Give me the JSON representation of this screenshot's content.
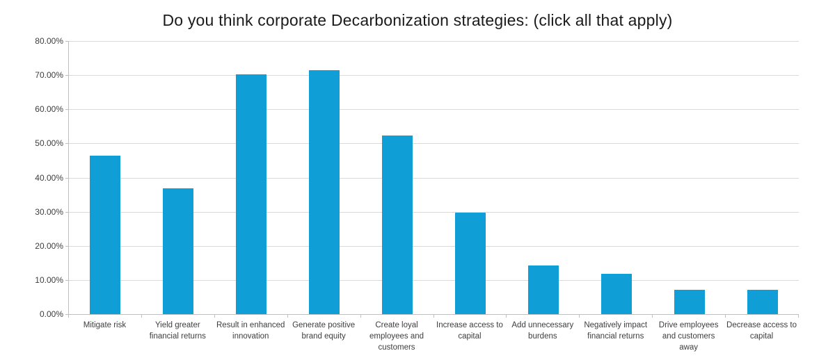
{
  "chart_data": {
    "type": "bar",
    "title": "Do you think corporate Decarbonization strategies: (click all that apply)",
    "categories": [
      "Mitigate risk",
      "Yield greater financial returns",
      "Result in enhanced innovation",
      "Generate positive brand equity",
      "Create loyal employees and customers",
      "Increase access to capital",
      "Add unnecessary burdens",
      "Negatively impact financial returns",
      "Drive employees and customers away",
      "Decrease access to capital"
    ],
    "values": [
      46.43,
      36.9,
      70.24,
      71.43,
      52.38,
      29.76,
      14.29,
      11.9,
      7.14,
      7.14
    ],
    "value_unit": "%",
    "xlabel": "",
    "ylabel": "",
    "ylim": [
      0,
      80
    ],
    "ytick_step": 10,
    "ytick_labels": [
      "0.00%",
      "10.00%",
      "20.00%",
      "30.00%",
      "40.00%",
      "50.00%",
      "60.00%",
      "70.00%",
      "80.00%"
    ],
    "grid": "horizontal",
    "legend": "none",
    "bar_color": "#0f9ed5",
    "gridline_color": "#d9d9d9",
    "axis_color": "#bfbfbf",
    "label_color": "#3d3d3d",
    "title_color": "#1a1a1a"
  }
}
